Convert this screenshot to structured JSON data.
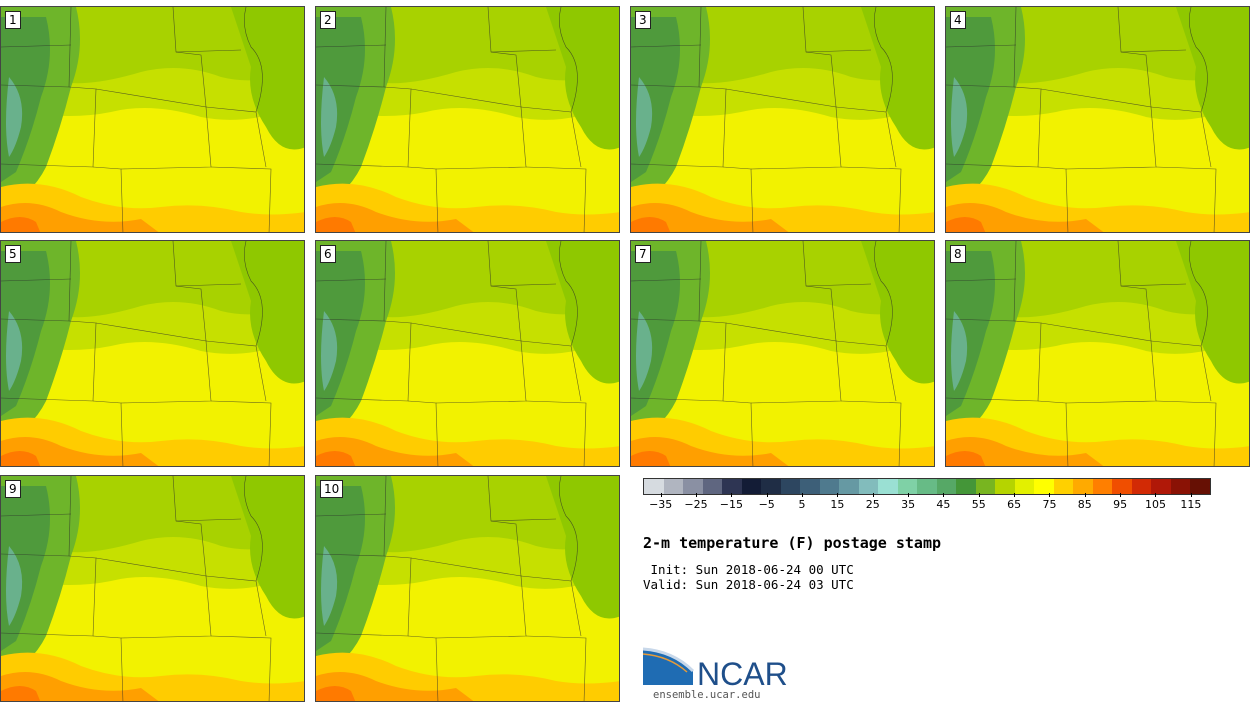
{
  "panels": [
    {
      "label": "1"
    },
    {
      "label": "2"
    },
    {
      "label": "3"
    },
    {
      "label": "4"
    },
    {
      "label": "5"
    },
    {
      "label": "6"
    },
    {
      "label": "7"
    },
    {
      "label": "8"
    },
    {
      "label": "9"
    },
    {
      "label": "10"
    }
  ],
  "colorbar": {
    "colors": [
      "#d6dbe0",
      "#b0b5c0",
      "#8a90a3",
      "#5f6680",
      "#2e3553",
      "#131c36",
      "#1f2d45",
      "#2d4660",
      "#3d5f78",
      "#4f7a8e",
      "#6699a3",
      "#82bcbc",
      "#9ae0d3",
      "#7fd1a6",
      "#67bb86",
      "#56a866",
      "#449638",
      "#78b520",
      "#b5d400",
      "#e3f000",
      "#ffff00",
      "#ffd000",
      "#ffaa00",
      "#ff7f00",
      "#f04e00",
      "#d22a05",
      "#b01808",
      "#8a1205",
      "#661004"
    ],
    "tick_labels": [
      "−35",
      "−25",
      "−15",
      "−5",
      "5",
      "15",
      "25",
      "35",
      "45",
      "55",
      "65",
      "75",
      "85",
      "95",
      "105",
      "115"
    ],
    "tick_values": [
      -35,
      -25,
      -15,
      -5,
      5,
      15,
      25,
      35,
      45,
      55,
      65,
      75,
      85,
      95,
      105,
      115
    ],
    "range": [
      -40,
      120
    ]
  },
  "title": "2-m temperature (F) postage stamp",
  "init": " Init: Sun 2018-06-24 00 UTC",
  "valid": "Valid: Sun 2018-06-24 03 UTC",
  "logo": {
    "text": "NCAR",
    "url": "ensemble.ucar.edu",
    "color": "#2a6fb5"
  }
}
